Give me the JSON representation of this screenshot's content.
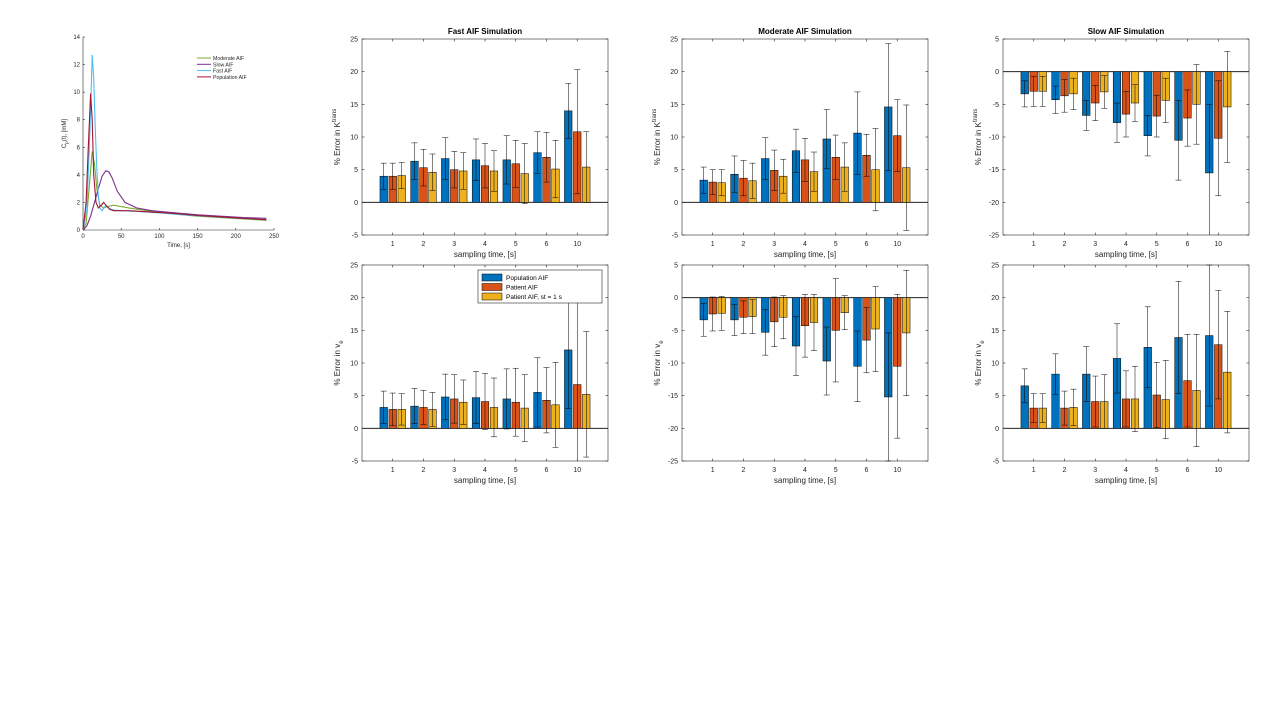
{
  "colors": {
    "population": "#0072BD",
    "patient": "#D95319",
    "patient_st": "#EDB120",
    "moderate": "#77AC30",
    "slow": "#7E2F8E",
    "fast": "#4DBEEE",
    "pop_curve": "#A2142F"
  },
  "chart_data": [
    {
      "id": "aif-curves",
      "type": "line",
      "title": "",
      "xlabel": "Time, [s]",
      "ylabel_main": "C",
      "ylabel_sub": "p",
      "ylabel_tail": "(t), [mM]",
      "xlim": [
        0,
        250
      ],
      "ylim": [
        0,
        14
      ],
      "xticks": [
        0,
        50,
        100,
        150,
        200,
        250
      ],
      "yticks": [
        0,
        2,
        4,
        6,
        8,
        10,
        12,
        14
      ],
      "legend_position": "top-right",
      "series": [
        {
          "name": "Moderate AIF",
          "color_key": "moderate",
          "x": [
            0,
            4,
            8,
            12,
            15,
            18,
            22,
            27,
            32,
            40,
            60,
            90,
            120,
            150,
            180,
            210,
            240
          ],
          "y": [
            0,
            0.5,
            3.0,
            5.7,
            4.8,
            3.0,
            1.8,
            1.6,
            1.7,
            1.8,
            1.6,
            1.35,
            1.15,
            1.0,
            0.9,
            0.8,
            0.7
          ]
        },
        {
          "name": "Slow AIF",
          "color_key": "slow",
          "x": [
            0,
            5,
            10,
            15,
            20,
            25,
            30,
            34,
            38,
            45,
            55,
            70,
            90,
            120,
            150,
            180,
            210,
            240
          ],
          "y": [
            0,
            0.3,
            1.0,
            2.0,
            3.0,
            3.9,
            4.3,
            4.2,
            3.8,
            2.8,
            2.0,
            1.6,
            1.4,
            1.25,
            1.1,
            1.0,
            0.9,
            0.85
          ]
        },
        {
          "name": "Fast AIF",
          "color_key": "fast",
          "x": [
            0,
            5,
            9,
            12,
            14,
            16,
            18,
            20,
            22,
            25,
            30,
            35,
            40,
            50,
            70,
            100,
            130,
            160,
            190,
            220,
            240
          ],
          "y": [
            0,
            1.5,
            7.0,
            12.7,
            11.0,
            7.5,
            4.5,
            2.5,
            1.6,
            1.4,
            1.8,
            1.55,
            1.45,
            1.4,
            1.35,
            1.25,
            1.1,
            1.0,
            0.9,
            0.8,
            0.75
          ]
        },
        {
          "name": "Population AIF",
          "color_key": "pop_curve",
          "x": [
            0,
            4,
            7,
            10,
            12,
            14,
            17,
            20,
            24,
            27,
            30,
            35,
            40,
            60,
            90,
            120,
            150,
            180,
            210,
            240
          ],
          "y": [
            0,
            2.0,
            6.0,
            9.9,
            8.0,
            4.0,
            2.0,
            1.6,
            1.8,
            2.0,
            1.8,
            1.5,
            1.4,
            1.4,
            1.3,
            1.2,
            1.05,
            0.95,
            0.85,
            0.75
          ]
        }
      ]
    },
    {
      "id": "fast-ktrans",
      "type": "bar",
      "title": "Fast AIF Simulation",
      "xlabel": "sampling time, [s]",
      "ylabel_main": "% Error in K",
      "ylabel_sup": "trans",
      "ylabel_sub": "",
      "ylim": [
        -5,
        25
      ],
      "yticks": [
        -5,
        0,
        5,
        10,
        15,
        20,
        25
      ],
      "categories": [
        "1",
        "2",
        "3",
        "4",
        "5",
        "6",
        "10"
      ],
      "series": [
        {
          "name": "Population AIF",
          "color_key": "population",
          "values": [
            4.0,
            6.3,
            6.7,
            6.5,
            6.5,
            7.6,
            14.0
          ],
          "errors": [
            2.0,
            2.8,
            3.2,
            3.2,
            3.7,
            3.2,
            4.2
          ]
        },
        {
          "name": "Patient AIF",
          "color_key": "patient",
          "values": [
            4.0,
            5.3,
            5.0,
            5.6,
            5.9,
            6.9,
            10.8
          ],
          "errors": [
            2.0,
            2.8,
            2.8,
            3.4,
            3.6,
            3.8,
            9.5
          ]
        },
        {
          "name": "Patient AIF, st = 1 s",
          "color_key": "patient_st",
          "values": [
            4.1,
            4.6,
            4.8,
            4.8,
            4.4,
            5.1,
            5.4
          ],
          "errors": [
            2.0,
            2.8,
            2.8,
            3.1,
            4.6,
            4.4,
            5.4
          ]
        }
      ]
    },
    {
      "id": "moderate-ktrans",
      "type": "bar",
      "title": "Moderate AIF Simulation",
      "xlabel": "sampling time, [s]",
      "ylabel_main": "% Error in K",
      "ylabel_sup": "trans",
      "ylabel_sub": "",
      "ylim": [
        -5,
        25
      ],
      "yticks": [
        -5,
        0,
        5,
        10,
        15,
        20,
        25
      ],
      "categories": [
        "1",
        "2",
        "3",
        "4",
        "5",
        "6",
        "10"
      ],
      "series": [
        {
          "name": "Population AIF",
          "color_key": "population",
          "values": [
            3.4,
            4.3,
            6.7,
            7.9,
            9.7,
            10.6,
            14.6
          ],
          "errors": [
            2.0,
            2.8,
            3.2,
            3.3,
            4.5,
            6.3,
            9.7
          ]
        },
        {
          "name": "Patient AIF",
          "color_key": "patient",
          "values": [
            3.1,
            3.7,
            4.9,
            6.5,
            6.9,
            7.2,
            10.2
          ],
          "errors": [
            1.9,
            2.7,
            3.1,
            3.3,
            3.4,
            3.2,
            5.5
          ]
        },
        {
          "name": "Patient AIF, st = 1 s",
          "color_key": "patient_st",
          "values": [
            3.0,
            3.3,
            4.0,
            4.7,
            5.4,
            5.0,
            5.3
          ],
          "errors": [
            2.0,
            2.7,
            2.6,
            3.0,
            3.7,
            6.3,
            9.6
          ]
        }
      ]
    },
    {
      "id": "slow-ktrans",
      "type": "bar",
      "title": "Slow AIF Simulation",
      "xlabel": "sampling time, [s]",
      "ylabel_main": "% Error in K",
      "ylabel_sup": "trans",
      "ylabel_sub": "",
      "ylim": [
        -25,
        5
      ],
      "yticks": [
        -25,
        -20,
        -15,
        -10,
        -5,
        0,
        5
      ],
      "categories": [
        "1",
        "2",
        "3",
        "4",
        "5",
        "6",
        "10"
      ],
      "series": [
        {
          "name": "Population AIF",
          "color_key": "population",
          "values": [
            -3.4,
            -4.3,
            -6.7,
            -7.8,
            -9.8,
            -10.5,
            -15.5
          ],
          "errors": [
            2.0,
            2.1,
            2.3,
            3.0,
            3.1,
            6.1,
            10.5
          ]
        },
        {
          "name": "Patient AIF",
          "color_key": "patient",
          "values": [
            -3.0,
            -3.7,
            -4.8,
            -6.5,
            -6.8,
            -7.1,
            -10.2
          ],
          "errors": [
            2.3,
            2.5,
            2.7,
            3.5,
            3.2,
            4.3,
            8.8
          ]
        },
        {
          "name": "Patient AIF, st = 1 s",
          "color_key": "patient_st",
          "values": [
            -3.0,
            -3.4,
            -3.1,
            -4.8,
            -4.4,
            -5.0,
            -5.4
          ],
          "errors": [
            2.3,
            2.4,
            2.5,
            2.8,
            3.4,
            6.1,
            8.5
          ]
        }
      ]
    },
    {
      "id": "fast-ve",
      "type": "bar",
      "title": "",
      "xlabel": "sampling time, [s]",
      "ylabel_main": "% Error in v",
      "ylabel_sup": "",
      "ylabel_sub": "e",
      "ylim": [
        -5,
        25
      ],
      "yticks": [
        -5,
        0,
        5,
        10,
        15,
        20,
        25
      ],
      "categories": [
        "1",
        "2",
        "3",
        "4",
        "5",
        "6",
        "10"
      ],
      "legend_position": "top-left",
      "series": [
        {
          "name": "Population AIF",
          "color_key": "population",
          "values": [
            3.2,
            3.4,
            4.8,
            4.7,
            4.5,
            5.5,
            12.0
          ],
          "errors": [
            2.5,
            2.7,
            3.5,
            4.0,
            4.6,
            5.3,
            9.0
          ]
        },
        {
          "name": "Patient AIF",
          "color_key": "patient",
          "values": [
            2.9,
            3.2,
            4.5,
            4.1,
            4.0,
            4.3,
            6.7
          ],
          "errors": [
            2.5,
            2.6,
            3.7,
            4.3,
            5.2,
            5.0,
            14.3
          ]
        },
        {
          "name": "Patient AIF, st = 1 s",
          "color_key": "patient_st",
          "values": [
            2.9,
            2.9,
            4.0,
            3.2,
            3.1,
            3.6,
            5.2
          ],
          "errors": [
            2.4,
            2.6,
            3.4,
            4.5,
            5.1,
            6.5,
            9.6
          ]
        }
      ]
    },
    {
      "id": "moderate-ve",
      "type": "bar",
      "title": "",
      "xlabel": "sampling time, [s]",
      "ylabel_main": "% Error in v",
      "ylabel_sup": "",
      "ylabel_sub": "e",
      "ylim": [
        -25,
        5
      ],
      "yticks": [
        -25,
        -20,
        -15,
        -10,
        -5,
        0,
        5
      ],
      "categories": [
        "1",
        "2",
        "3",
        "4",
        "5",
        "6",
        "10"
      ],
      "series": [
        {
          "name": "Population AIF",
          "color_key": "population",
          "values": [
            -3.4,
            -3.4,
            -5.3,
            -7.4,
            -9.7,
            -10.5,
            -15.2
          ],
          "errors": [
            2.5,
            2.4,
            3.5,
            4.5,
            5.2,
            5.4,
            9.8
          ]
        },
        {
          "name": "Patient AIF",
          "color_key": "patient",
          "values": [
            -2.5,
            -3.0,
            -3.7,
            -4.3,
            -5.0,
            -6.5,
            -10.5
          ],
          "errors": [
            2.6,
            2.5,
            3.8,
            4.8,
            7.9,
            5.0,
            11.0
          ]
        },
        {
          "name": "Patient AIF, st = 1 s",
          "color_key": "patient_st",
          "values": [
            -2.4,
            -2.9,
            -3.0,
            -3.8,
            -2.3,
            -4.8,
            -5.4
          ],
          "errors": [
            2.6,
            2.6,
            3.3,
            4.3,
            2.6,
            6.5,
            9.6
          ]
        }
      ]
    },
    {
      "id": "slow-ve",
      "type": "bar",
      "title": "",
      "xlabel": "sampling time, [s]",
      "ylabel_main": "% Error in v",
      "ylabel_sup": "",
      "ylabel_sub": "e",
      "ylim": [
        -5,
        25
      ],
      "yticks": [
        -5,
        0,
        5,
        10,
        15,
        20,
        25
      ],
      "categories": [
        "1",
        "2",
        "3",
        "4",
        "5",
        "6",
        "10"
      ],
      "series": [
        {
          "name": "Population AIF",
          "color_key": "population",
          "values": [
            6.5,
            8.3,
            8.3,
            10.7,
            12.4,
            13.9,
            14.2
          ],
          "errors": [
            2.6,
            3.1,
            4.2,
            5.3,
            6.2,
            8.6,
            10.8
          ]
        },
        {
          "name": "Patient AIF",
          "color_key": "patient",
          "values": [
            3.1,
            3.1,
            4.1,
            4.5,
            5.1,
            7.3,
            12.8
          ],
          "errors": [
            2.2,
            2.6,
            3.9,
            4.3,
            5.0,
            7.1,
            8.3
          ]
        },
        {
          "name": "Patient AIF, st = 1 s",
          "color_key": "patient_st",
          "values": [
            3.1,
            3.2,
            4.1,
            4.5,
            4.4,
            5.8,
            8.6
          ],
          "errors": [
            2.2,
            2.8,
            4.1,
            5.0,
            6.0,
            8.6,
            9.3
          ]
        }
      ]
    }
  ]
}
